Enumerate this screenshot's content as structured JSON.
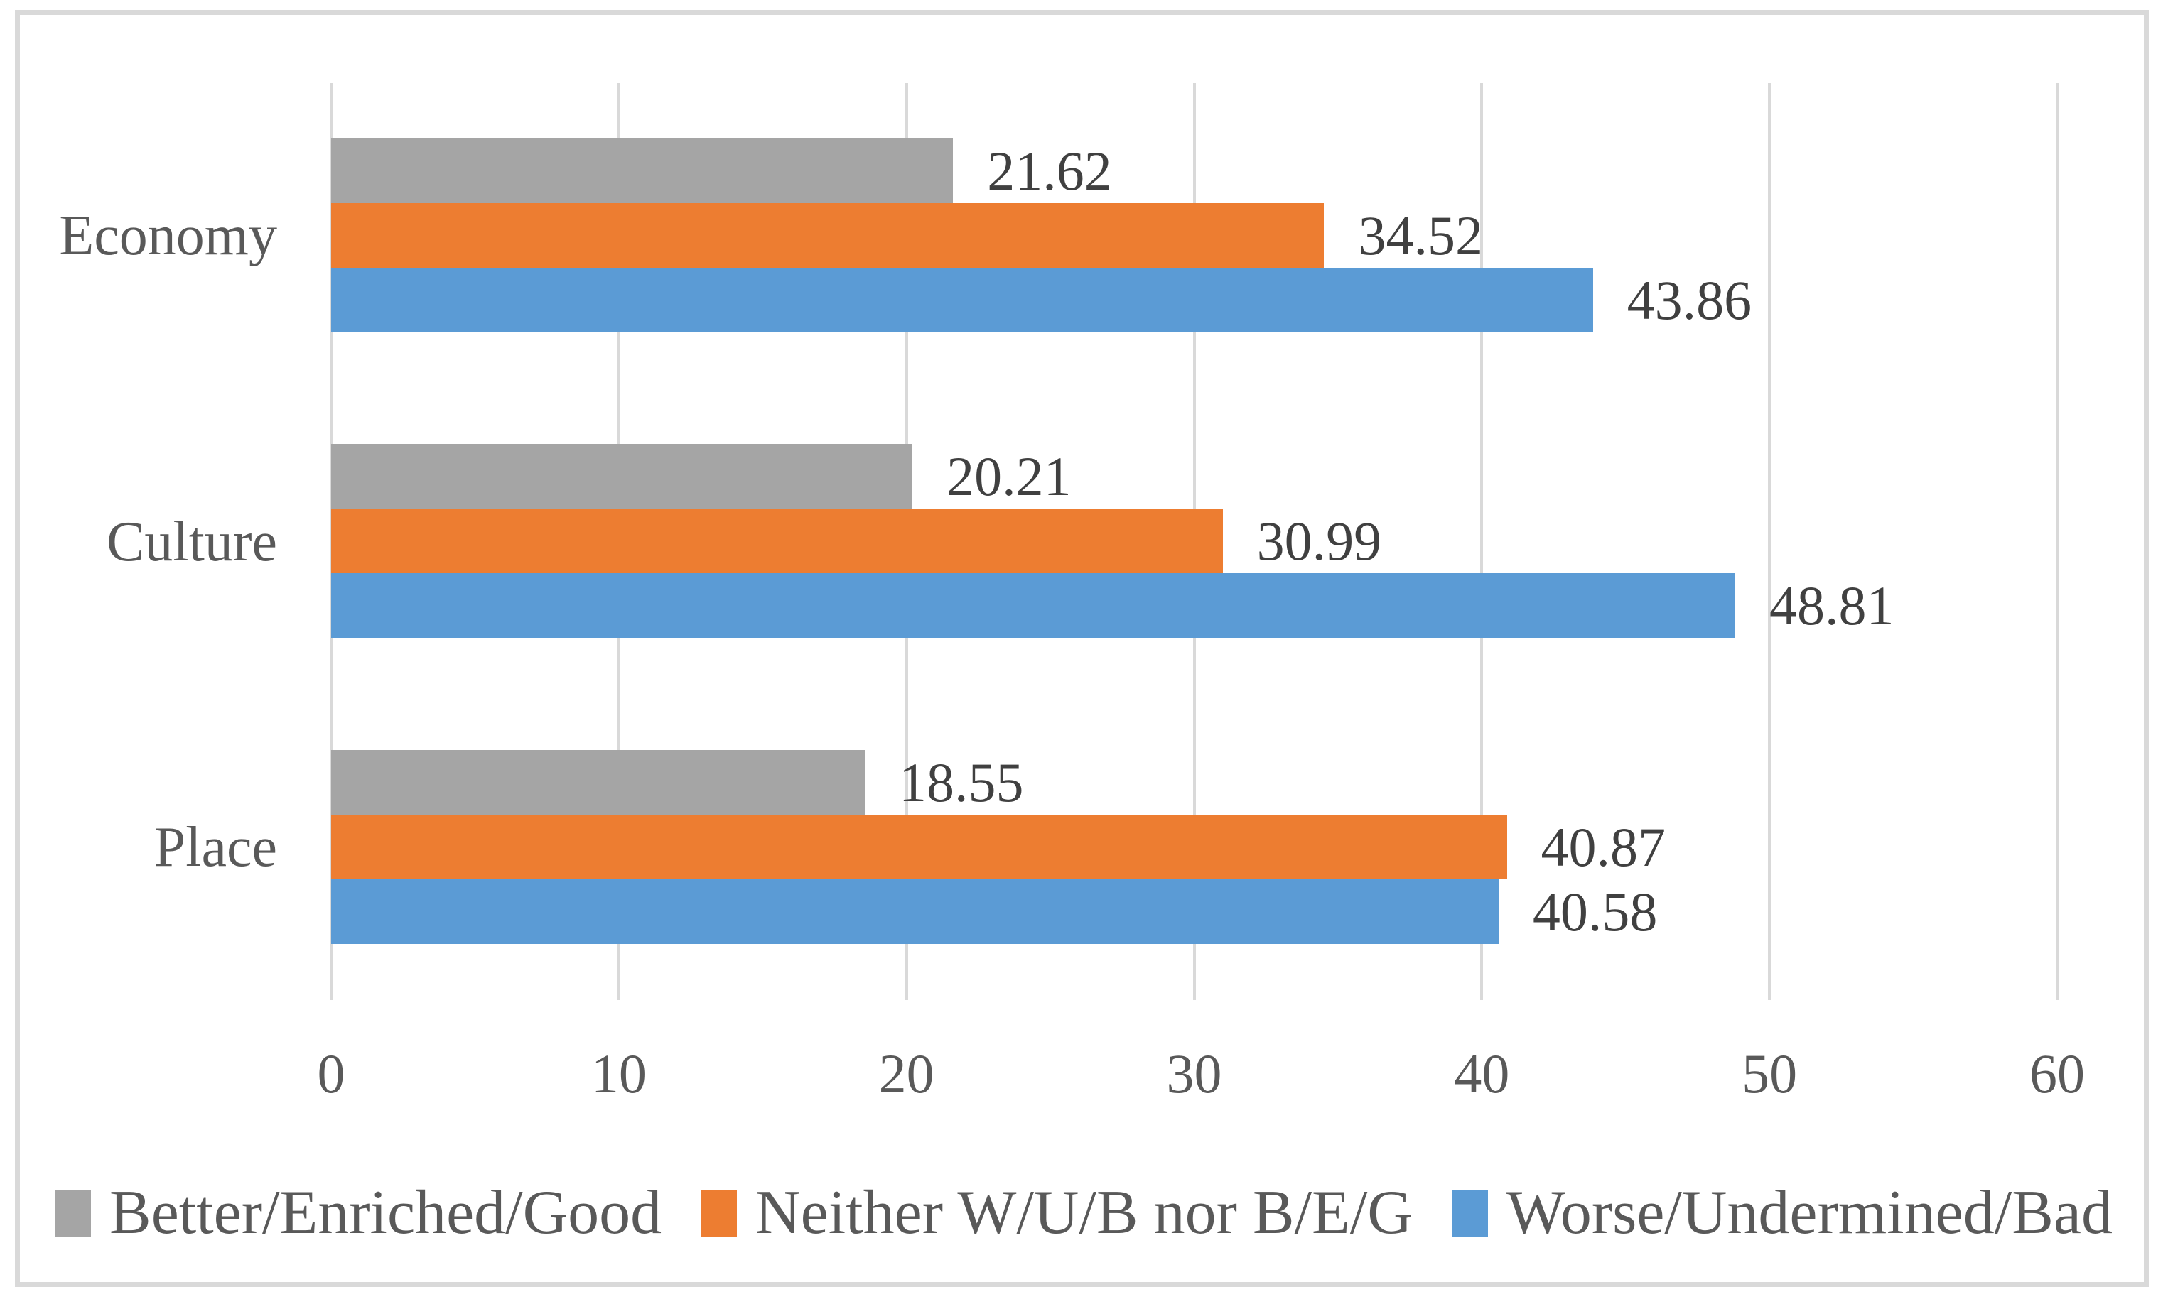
{
  "chart_data": {
    "type": "bar",
    "orientation": "horizontal",
    "title": "",
    "xlabel": "",
    "ylabel": "",
    "xlim": [
      0,
      60
    ],
    "x_ticks": [
      "0",
      "10",
      "20",
      "30",
      "40",
      "50",
      "60"
    ],
    "grid": "vertical-major",
    "legend_position": "bottom",
    "categories": [
      "Economy",
      "Culture",
      "Place"
    ],
    "series": [
      {
        "name": "Better/Enriched/Good",
        "color": "#A5A5A5",
        "values": [
          21.62,
          20.21,
          18.55
        ]
      },
      {
        "name": "Neither W/U/B nor B/E/G",
        "color": "#ED7D31",
        "values": [
          34.52,
          30.99,
          40.87
        ]
      },
      {
        "name": "Worse/Undermined/Bad",
        "color": "#5B9BD5",
        "values": [
          43.86,
          48.81,
          40.58
        ]
      }
    ],
    "data_labels": {
      "Economy": [
        "21.62",
        "34.52",
        "43.86"
      ],
      "Culture": [
        "20.21",
        "30.99",
        "48.81"
      ],
      "Place": [
        "18.55",
        "40.87",
        "40.58"
      ]
    },
    "colors": {
      "gridline": "#D9D9D9",
      "frame_border": "#D9D9D9",
      "data_label_text": "#404040",
      "axis_text": "#595959",
      "background": "#FFFFFF"
    }
  }
}
